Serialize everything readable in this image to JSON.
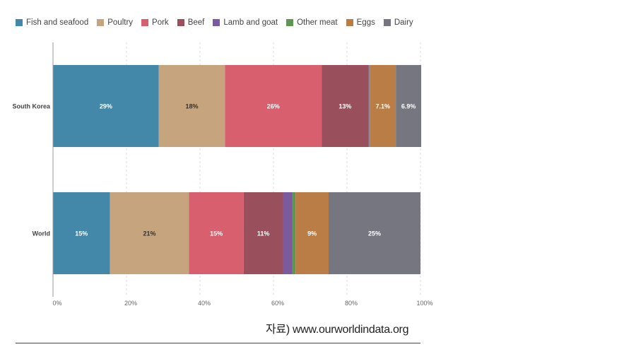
{
  "chart_data": {
    "type": "bar",
    "orientation": "horizontal",
    "stacked": true,
    "normalized": true,
    "categories": [
      "South Korea",
      "World"
    ],
    "series": [
      {
        "name": "Fish and seafood",
        "color": "#4388a8",
        "values": [
          28.8,
          15.5
        ],
        "labels": [
          "29%",
          "15%"
        ]
      },
      {
        "name": "Poultry",
        "color": "#c5a47e",
        "values": [
          18.0,
          21.5
        ],
        "labels": [
          "18%",
          "21%"
        ]
      },
      {
        "name": "Pork",
        "color": "#d75f6e",
        "values": [
          26.3,
          14.9
        ],
        "labels": [
          "26%",
          "15%"
        ]
      },
      {
        "name": "Beef",
        "color": "#9a4f5c",
        "values": [
          12.8,
          10.7
        ],
        "labels": [
          "13%",
          "11%"
        ]
      },
      {
        "name": "Lamb and goat",
        "color": "#7c5aa0",
        "values": [
          0.2,
          2.5
        ],
        "labels": [
          "",
          ""
        ]
      },
      {
        "name": "Other meat",
        "color": "#5e9653",
        "values": [
          0.1,
          0.9
        ],
        "labels": [
          "",
          ""
        ]
      },
      {
        "name": "Eggs",
        "color": "#b97d45",
        "values": [
          7.1,
          9.0
        ],
        "labels": [
          "7.1%",
          "9%"
        ]
      },
      {
        "name": "Dairy",
        "color": "#767680",
        "values": [
          6.9,
          25.0
        ],
        "labels": [
          "6.9%",
          "25%"
        ]
      }
    ],
    "xlim": [
      0,
      100
    ],
    "xticks": [
      "0%",
      "20%",
      "40%",
      "60%",
      "80%",
      "100%"
    ],
    "legend_position": "top"
  },
  "source_text": "자료) www.ourworldindata.org"
}
